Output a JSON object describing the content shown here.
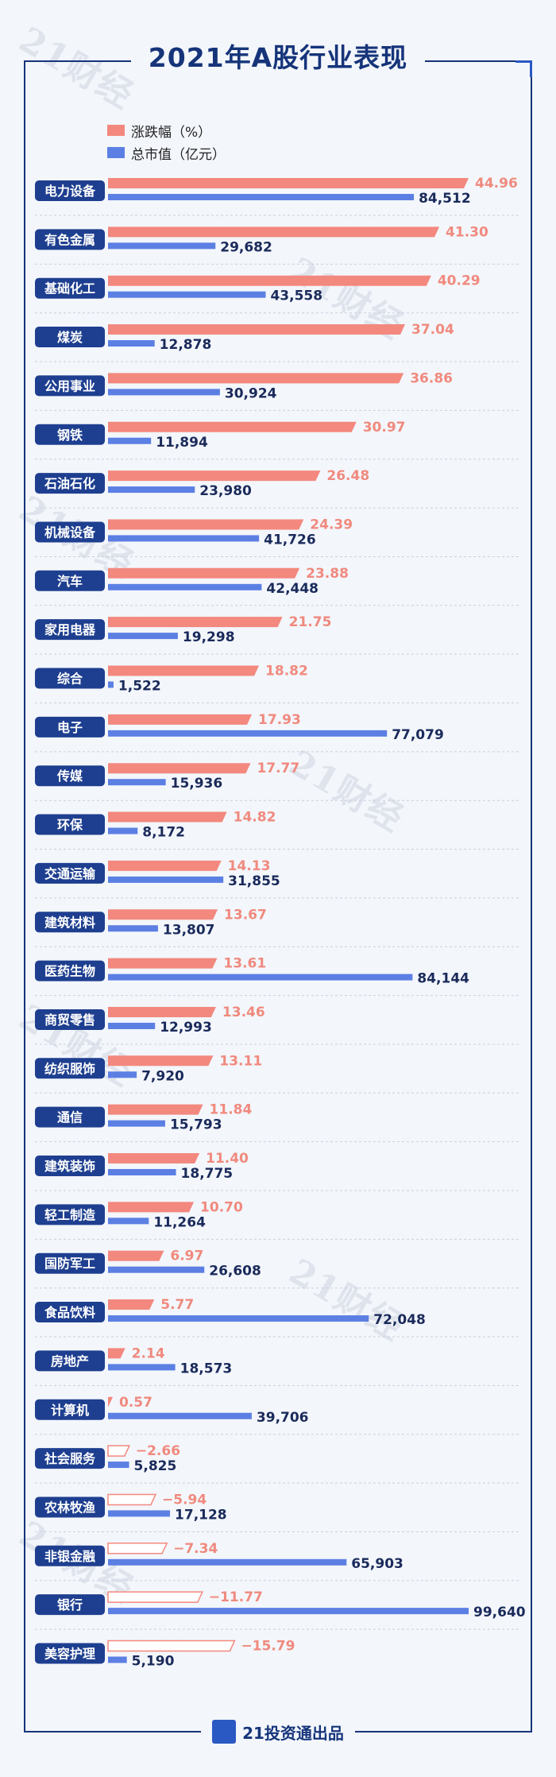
{
  "title": "2021年A股行业表现",
  "watermark": "21财经",
  "footer": {
    "logo_text": "投资通",
    "text": "21投资通出品"
  },
  "legend": [
    {
      "label": "涨跌幅（%）",
      "color": "#f3887f"
    },
    {
      "label": "总市值（亿元）",
      "color": "#5b7fe3"
    }
  ],
  "colors": {
    "label_bg": "#1e3f8f",
    "pct_bar": "#f3887f",
    "pct_text": "#f08a7e",
    "cap_bar": "#5b7fe3",
    "cap_text": "#1a2a5a"
  },
  "chart_data": {
    "type": "bar",
    "series": [
      {
        "name": "涨跌幅（%）",
        "values": [
          44.96,
          41.3,
          40.29,
          37.04,
          36.86,
          30.97,
          26.48,
          24.39,
          23.88,
          21.75,
          18.82,
          17.93,
          17.77,
          14.82,
          14.13,
          13.67,
          13.61,
          13.46,
          13.11,
          11.84,
          11.4,
          10.7,
          6.97,
          5.77,
          2.14,
          0.57,
          -2.66,
          -5.94,
          -7.34,
          -11.77,
          -15.79
        ],
        "labels": [
          "44.96",
          "41.30",
          "40.29",
          "37.04",
          "36.86",
          "30.97",
          "26.48",
          "24.39",
          "23.88",
          "21.75",
          "18.82",
          "17.93",
          "17.77",
          "14.82",
          "14.13",
          "13.67",
          "13.61",
          "13.46",
          "13.11",
          "11.84",
          "11.40",
          "10.70",
          "6.97",
          "5.77",
          "2.14",
          "0.57",
          "−2.66",
          "−5.94",
          "−7.34",
          "−11.77",
          "−15.79"
        ]
      },
      {
        "name": "总市值（亿元）",
        "values": [
          84512,
          29682,
          43558,
          12878,
          30924,
          11894,
          23980,
          41726,
          42448,
          19298,
          1522,
          77079,
          15936,
          8172,
          31855,
          13807,
          84144,
          12993,
          7920,
          15793,
          18775,
          11264,
          26608,
          72048,
          18573,
          39706,
          5825,
          17128,
          65903,
          99640,
          5190
        ],
        "labels": [
          "84,512",
          "29,682",
          "43,558",
          "12,878",
          "30,924",
          "11,894",
          "23,980",
          "41,726",
          "42,448",
          "19,298",
          "1,522",
          "77,079",
          "15,936",
          "8,172",
          "31,855",
          "13,807",
          "84,144",
          "12,993",
          "7,920",
          "15,793",
          "18,775",
          "11,264",
          "26,608",
          "72,048",
          "18,573",
          "39,706",
          "5,825",
          "17,128",
          "65,903",
          "99,640",
          "5,190"
        ]
      }
    ],
    "categories": [
      "电力设备",
      "有色金属",
      "基础化工",
      "煤炭",
      "公用事业",
      "钢铁",
      "石油石化",
      "机械设备",
      "汽车",
      "家用电器",
      "综合",
      "电子",
      "传媒",
      "环保",
      "交通运输",
      "建筑材料",
      "医药生物",
      "商贸零售",
      "纺织服饰",
      "通信",
      "建筑装饰",
      "轻工制造",
      "国防军工",
      "食品饮料",
      "房地产",
      "计算机",
      "社会服务",
      "农林牧渔",
      "非银金融",
      "银行",
      "美容护理"
    ]
  }
}
